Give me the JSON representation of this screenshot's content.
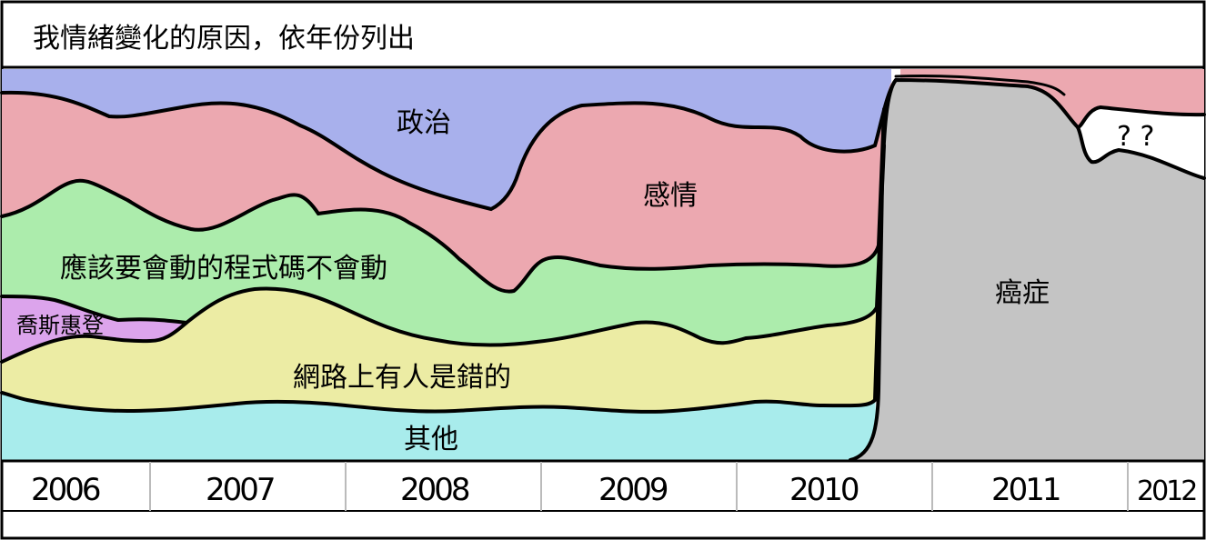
{
  "chart_data": {
    "type": "area",
    "title": "我情緒變化的原因，依年份列出",
    "xlabel": "",
    "ylabel": "",
    "x_ticks": [
      "2006",
      "2007",
      "2008",
      "2009",
      "2010",
      "2011",
      "2012"
    ],
    "series": [
      {
        "name": "其他",
        "color": "#a8ecec"
      },
      {
        "name": "網路上有人是錯的",
        "color": "#ececa4"
      },
      {
        "name": "喬斯惠登",
        "color": "#dca4ec"
      },
      {
        "name": "應該要會動的程式碼不會動",
        "color": "#acecac"
      },
      {
        "name": "感情",
        "color": "#eca8b0"
      },
      {
        "name": "政治",
        "color": "#a8b0ec"
      },
      {
        "name": "癌症",
        "color": "#c4c4c4"
      }
    ],
    "annotations": [
      "? ?"
    ],
    "grid": false,
    "legend": "inline"
  }
}
